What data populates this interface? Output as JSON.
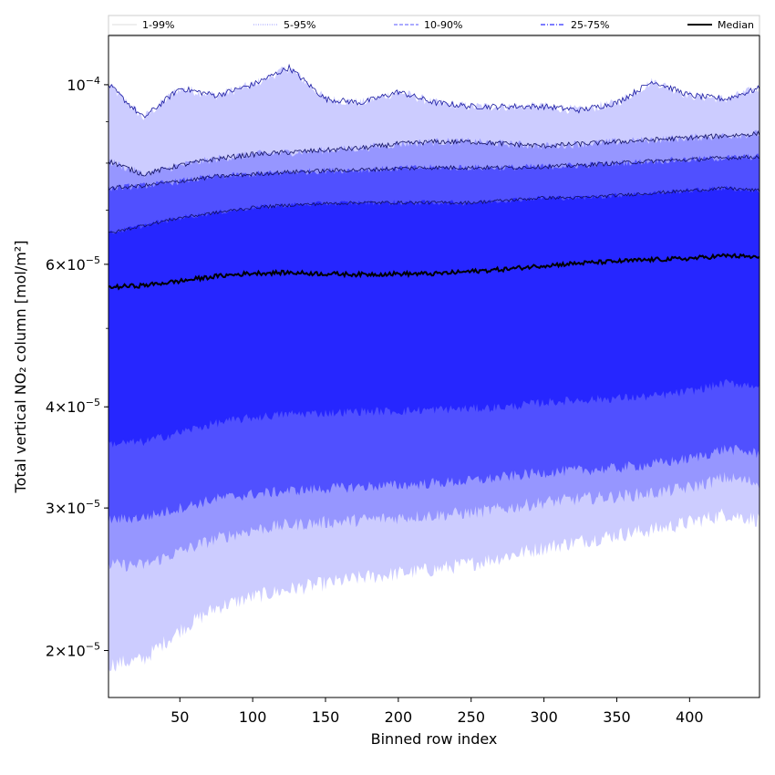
{
  "chart_data": {
    "type": "area",
    "xlabel": "Binned row index",
    "ylabel": "Total vertical NO₂ column [mol/m²]",
    "xlim": [
      1,
      448
    ],
    "ylim": [
      1.75e-05,
      0.000115
    ],
    "yscale": "log",
    "x_ticks": [
      50,
      100,
      150,
      200,
      250,
      300,
      350,
      400
    ],
    "y_tick_labels": [
      {
        "mantissa": "2",
        "exp": "−5",
        "value": 2e-05
      },
      {
        "mantissa": "3",
        "exp": "−5",
        "value": 3e-05
      },
      {
        "mantissa": "4",
        "exp": "−5",
        "value": 4e-05
      },
      {
        "mantissa": "6",
        "exp": "−5",
        "value": 6e-05
      },
      {
        "mantissa": "",
        "exp": "−4",
        "value": 0.0001
      }
    ],
    "legend_position": "top",
    "x": [
      1,
      25,
      50,
      75,
      100,
      125,
      150,
      175,
      200,
      225,
      250,
      275,
      300,
      325,
      350,
      375,
      400,
      425,
      448
    ],
    "series": [
      {
        "name": "1-99%",
        "style": "thin-line",
        "color": "#ccccff",
        "low": [
          1.92e-05,
          1.95e-05,
          2.12e-05,
          2.26e-05,
          2.33e-05,
          2.38e-05,
          2.42e-05,
          2.46e-05,
          2.49e-05,
          2.52e-05,
          2.56e-05,
          2.62e-05,
          2.68e-05,
          2.73e-05,
          2.78e-05,
          2.82e-05,
          2.88e-05,
          2.95e-05,
          2.9e-05
        ],
        "high": [
          0.0001,
          9.1e-05,
          9.9e-05,
          9.7e-05,
          0.0001,
          0.000105,
          9.6e-05,
          9.5e-05,
          9.8e-05,
          9.5e-05,
          9.4e-05,
          9.4e-05,
          9.4e-05,
          9.3e-05,
          9.5e-05,
          0.000101,
          9.7e-05,
          9.6e-05,
          9.9e-05
        ]
      },
      {
        "name": "5-95%",
        "style": "dotted-line",
        "color": "#9696ff",
        "low": [
          2.55e-05,
          2.55e-05,
          2.65e-05,
          2.75e-05,
          2.82e-05,
          2.86e-05,
          2.88e-05,
          2.9e-05,
          2.92e-05,
          2.94e-05,
          2.96e-05,
          3e-05,
          3.05e-05,
          3.08e-05,
          3.1e-05,
          3.13e-05,
          3.18e-05,
          3.27e-05,
          3.22e-05
        ],
        "high": [
          8.05e-05,
          7.75e-05,
          7.95e-05,
          8.1e-05,
          8.2e-05,
          8.25e-05,
          8.3e-05,
          8.35e-05,
          8.45e-05,
          8.5e-05,
          8.5e-05,
          8.45e-05,
          8.4e-05,
          8.45e-05,
          8.5e-05,
          8.55e-05,
          8.6e-05,
          8.65e-05,
          8.7e-05
        ]
      },
      {
        "name": "10-90%",
        "style": "dashed-line",
        "color": "#5050ff",
        "low": [
          2.9e-05,
          2.92e-05,
          3e-05,
          3.08e-05,
          3.12e-05,
          3.15e-05,
          3.17e-05,
          3.19e-05,
          3.2e-05,
          3.22e-05,
          3.24e-05,
          3.28e-05,
          3.32e-05,
          3.34e-05,
          3.36e-05,
          3.4e-05,
          3.45e-05,
          3.55e-05,
          3.5e-05
        ],
        "high": [
          7.45e-05,
          7.5e-05,
          7.6e-05,
          7.7e-05,
          7.75e-05,
          7.8e-05,
          7.83e-05,
          7.85e-05,
          7.88e-05,
          7.9e-05,
          7.9e-05,
          7.9e-05,
          7.92e-05,
          7.95e-05,
          8e-05,
          8.05e-05,
          8.08e-05,
          8.12e-05,
          8.15e-05
        ]
      },
      {
        "name": "25-75%",
        "style": "dash-dot-line",
        "color": "#2626ff",
        "low": [
          3.6e-05,
          3.62e-05,
          3.72e-05,
          3.82e-05,
          3.88e-05,
          3.92e-05,
          3.93e-05,
          3.95e-05,
          3.95e-05,
          3.97e-05,
          3.98e-05,
          4e-05,
          4.05e-05,
          4.08e-05,
          4.1e-05,
          4.12e-05,
          4.18e-05,
          4.28e-05,
          4.25e-05
        ],
        "high": [
          6.55e-05,
          6.7e-05,
          6.85e-05,
          6.95e-05,
          7.05e-05,
          7.1e-05,
          7.13e-05,
          7.15e-05,
          7.15e-05,
          7.15e-05,
          7.15e-05,
          7.2e-05,
          7.25e-05,
          7.25e-05,
          7.3e-05,
          7.35e-05,
          7.4e-05,
          7.45e-05,
          7.4e-05
        ]
      },
      {
        "name": "Median",
        "style": "solid-line",
        "color": "#000000",
        "values": [
          5.62e-05,
          5.65e-05,
          5.72e-05,
          5.8e-05,
          5.85e-05,
          5.86e-05,
          5.84e-05,
          5.83e-05,
          5.84e-05,
          5.84e-05,
          5.88e-05,
          5.92e-05,
          5.98e-05,
          6.02e-05,
          6.05e-05,
          6.08e-05,
          6.1e-05,
          6.15e-05,
          6.12e-05
        ]
      }
    ]
  }
}
